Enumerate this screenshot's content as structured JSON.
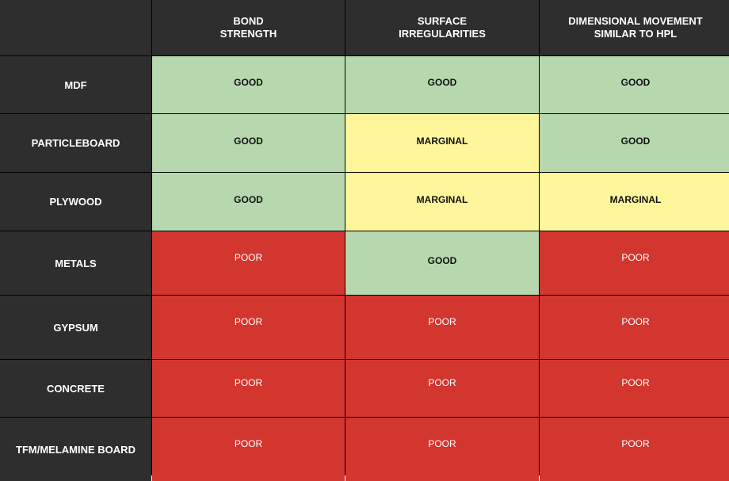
{
  "chart_data": {
    "type": "table",
    "columns": [
      "BOND\nSTRENGTH",
      "SURFACE\nIRREGULARITIES",
      "DIMENSIONAL MOVEMENT\nSIMILAR TO HPL"
    ],
    "rows": [
      {
        "label": "MDF",
        "values": [
          "GOOD",
          "GOOD",
          "GOOD"
        ]
      },
      {
        "label": "PARTICLEBOARD",
        "values": [
          "GOOD",
          "MARGINAL",
          "GOOD"
        ]
      },
      {
        "label": "PLYWOOD",
        "values": [
          "GOOD",
          "MARGINAL",
          "MARGINAL"
        ]
      },
      {
        "label": "METALS",
        "values": [
          "POOR",
          "GOOD",
          "POOR"
        ]
      },
      {
        "label": "GYPSUM",
        "values": [
          "POOR",
          "POOR",
          "POOR"
        ]
      },
      {
        "label": "CONCRETE",
        "values": [
          "POOR",
          "POOR",
          "POOR"
        ]
      },
      {
        "label": "TFM/MELAMINE BOARD",
        "values": [
          "POOR",
          "POOR",
          "POOR"
        ]
      }
    ],
    "rating_colors": {
      "GOOD": "#b7d8ae",
      "MARGINAL": "#fff59a",
      "POOR": "#d3362f"
    },
    "header_color": "#2e2e2e"
  }
}
